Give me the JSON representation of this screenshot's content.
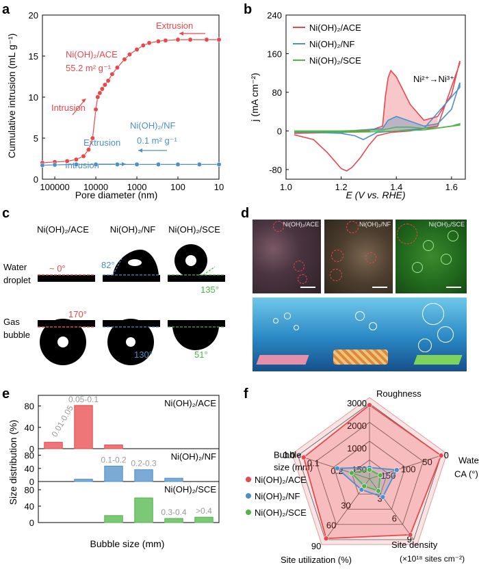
{
  "panels": {
    "a": {
      "letter": "a",
      "y_label": "Cumulative intrusion (mL g⁻¹)",
      "x_label": "Pore diameter (nm)",
      "ace_label": "Ni(OH)₂/ACE",
      "ace_area": "55.2 m² g⁻¹",
      "nf_label": "Ni(OH)₂/NF",
      "nf_area": "0.1 m² g⁻¹",
      "extrusion": "Extrusion",
      "intrusion": "Intrusion"
    },
    "b": {
      "letter": "b",
      "y_label": "j (mA cm⁻²)",
      "x_label": "E (V vs. RHE)",
      "annotation": "Ni²⁺→Ni³⁺"
    },
    "c": {
      "letter": "c",
      "cols": [
        "Ni(OH)₂/ACE",
        "Ni(OH)₂/NF",
        "Ni(OH)₂/SCE"
      ],
      "row1": [
        "Water",
        "droplet"
      ],
      "row2": [
        "Gas",
        "bubble"
      ],
      "water_angles": [
        "~ 0°",
        "82°",
        "135°"
      ],
      "gas_angles": [
        "170°",
        "130°",
        "51°"
      ]
    },
    "d": {
      "letter": "d",
      "labels": [
        "Ni(OH)₂/ACE",
        "Ni(OH)₂/NF",
        "Ni(OH)₂/SCE"
      ]
    },
    "e": {
      "letter": "e",
      "y_label": "Size distribution (%)",
      "x_label": "Bubble size (mm)"
    },
    "f": {
      "letter": "f"
    }
  },
  "legend": [
    "Ni(OH)₂/ACE",
    "Ni(OH)₂/NF",
    "Ni(OH)₂/SCE"
  ],
  "colors": {
    "ace": "#e8474b",
    "nf": "#4e8fc9",
    "sce": "#4fb548"
  },
  "chart_data": [
    {
      "panel": "a",
      "type": "scatter",
      "xlabel": "Pore diameter (nm)",
      "ylabel": "Cumulative intrusion (mL g⁻¹)",
      "x_scale": "log-reversed",
      "xlim": [
        200000,
        10
      ],
      "ylim": [
        0,
        20
      ],
      "x_ticks": [
        "100000",
        "10000",
        "1000",
        "100",
        "10"
      ],
      "y_ticks": [
        "0",
        "5",
        "10",
        "15",
        "20"
      ],
      "series": [
        {
          "name": "Ni(OH)₂/ACE",
          "x": [
            200000,
            100000,
            50000,
            30000,
            20000,
            15000,
            12000,
            10000,
            9000,
            8000,
            7000,
            6000,
            5000,
            4000,
            3000,
            2000,
            1500,
            1000,
            700,
            500,
            300,
            200,
            100,
            50,
            20,
            10
          ],
          "y": [
            2.0,
            2.1,
            2.2,
            2.4,
            2.8,
            3.6,
            5.0,
            8.5,
            10.0,
            10.5,
            11.0,
            11.5,
            12.0,
            12.8,
            13.6,
            14.6,
            15.2,
            15.8,
            16.3,
            16.6,
            16.8,
            16.9,
            17.0,
            17.0,
            17.0,
            17.0
          ]
        },
        {
          "name": "Ni(OH)₂/NF",
          "x": [
            200000,
            100000,
            30000,
            10000,
            3000,
            1000,
            300,
            100,
            30,
            10
          ],
          "y": [
            1.7,
            1.75,
            1.8,
            1.8,
            1.8,
            1.8,
            1.8,
            1.8,
            1.8,
            1.8
          ]
        }
      ]
    },
    {
      "panel": "b",
      "type": "line",
      "xlabel": "E (V vs. RHE)",
      "ylabel": "j (mA cm⁻²)",
      "xlim": [
        1.0,
        1.65
      ],
      "ylim": [
        -100,
        240
      ],
      "x_ticks": [
        "1.0",
        "1.2",
        "1.4",
        "1.6"
      ],
      "y_ticks": [
        "-80",
        "0",
        "80",
        "160",
        "240"
      ],
      "series": [
        {
          "name": "Ni(OH)₂/ACE",
          "x_forward": [
            1.03,
            1.2,
            1.3,
            1.35,
            1.36,
            1.37,
            1.38,
            1.4,
            1.45,
            1.5,
            1.55,
            1.6,
            1.63
          ],
          "y_forward": [
            -5,
            -3,
            0,
            10,
            70,
            110,
            125,
            112,
            55,
            22,
            30,
            75,
            145
          ],
          "x_reverse": [
            1.63,
            1.55,
            1.45,
            1.38,
            1.33,
            1.3,
            1.27,
            1.24,
            1.22,
            1.2,
            1.15,
            1.1,
            1.03
          ],
          "y_reverse": [
            140,
            10,
            0,
            -3,
            -10,
            -30,
            -55,
            -75,
            -83,
            -78,
            -45,
            -18,
            -8
          ]
        },
        {
          "name": "Ni(OH)₂/NF",
          "x_forward": [
            1.03,
            1.2,
            1.35,
            1.37,
            1.4,
            1.45,
            1.5,
            1.55,
            1.6,
            1.63
          ],
          "y_forward": [
            -2,
            -1,
            5,
            22,
            30,
            20,
            10,
            15,
            45,
            100
          ],
          "x_reverse": [
            1.63,
            1.5,
            1.4,
            1.33,
            1.3,
            1.28,
            1.25,
            1.2,
            1.1,
            1.03
          ],
          "y_reverse": [
            90,
            5,
            0,
            -3,
            -12,
            -18,
            -10,
            -5,
            -3,
            -3
          ]
        },
        {
          "name": "Ni(OH)₂/SCE",
          "x_forward": [
            1.03,
            1.2,
            1.35,
            1.4,
            1.45,
            1.5,
            1.55,
            1.6,
            1.63
          ],
          "y_forward": [
            0,
            0,
            2,
            8,
            8,
            5,
            6,
            10,
            15
          ],
          "x_reverse": [
            1.63,
            1.5,
            1.4,
            1.3,
            1.2,
            1.1,
            1.03
          ],
          "y_reverse": [
            12,
            2,
            0,
            -2,
            -3,
            -2,
            -2
          ]
        }
      ]
    },
    {
      "panel": "e",
      "type": "bar",
      "xlabel": "Bubble size (mm)",
      "ylabel": "Size distribution (%)",
      "ylim": [
        0,
        100
      ],
      "y_ticks": [
        "0",
        "40",
        "80"
      ],
      "subplots": [
        {
          "name": "Ni(OH)₂/ACE",
          "bars": [
            {
              "pos": 0,
              "value": 12,
              "label": "0.01-0.05"
            },
            {
              "pos": 1,
              "value": 81,
              "label": "0.05-0.1"
            },
            {
              "pos": 2,
              "value": 7,
              "label": ""
            }
          ]
        },
        {
          "name": "Ni(OH)₂/NF",
          "bars": [
            {
              "pos": 1,
              "value": 7,
              "label": ""
            },
            {
              "pos": 2,
              "value": 47,
              "label": "0.1-0.2"
            },
            {
              "pos": 3,
              "value": 36,
              "label": "0.2-0.3"
            },
            {
              "pos": 4,
              "value": 10,
              "label": ""
            }
          ]
        },
        {
          "name": "Ni(OH)₂/SCE",
          "bars": [
            {
              "pos": 2,
              "value": 17,
              "label": ""
            },
            {
              "pos": 3,
              "value": 60,
              "label": ""
            },
            {
              "pos": 4,
              "value": 10,
              "label": "0.3-0.4"
            },
            {
              "pos": 5,
              "value": 13,
              "label": ">0.4"
            }
          ]
        }
      ]
    },
    {
      "panel": "f",
      "type": "radar",
      "axes": [
        {
          "name": "Roughness",
          "ticks": [
            "150",
            "1000",
            "2000",
            "3000"
          ]
        },
        {
          "name": "Water CA (°)",
          "ticks": [
            "150",
            "100",
            "50",
            "0"
          ]
        },
        {
          "name": "Site density (×10¹⁸ sites cm⁻²)",
          "ticks": [
            "3",
            "6",
            "9"
          ]
        },
        {
          "name": "Site utilization (%)",
          "ticks": [
            "30",
            "60",
            "90"
          ]
        },
        {
          "name": "Bubble size (mm)",
          "ticks": [
            "0.2",
            "0.1",
            "0.0"
          ]
        }
      ],
      "series": [
        {
          "name": "Ni(OH)₂/ACE",
          "values": [
            0.98,
            1.0,
            0.92,
            0.98,
            0.92
          ]
        },
        {
          "name": "Ni(OH)₂/NF",
          "values": [
            0.15,
            0.38,
            0.3,
            0.18,
            0.45
          ]
        },
        {
          "name": "Ni(OH)₂/SCE",
          "values": [
            0.12,
            0.15,
            0.2,
            0.12,
            0.25
          ]
        }
      ]
    }
  ]
}
